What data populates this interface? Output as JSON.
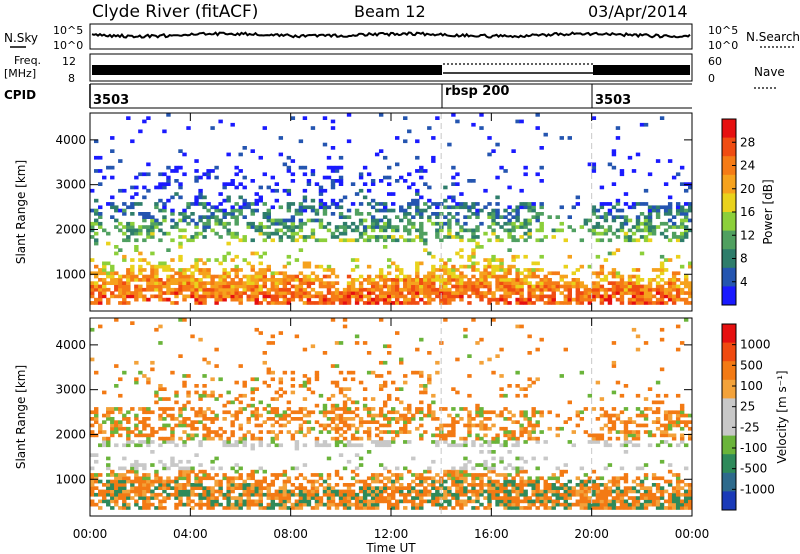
{
  "header": {
    "station": "Clyde River (fitACF)",
    "beam": "Beam 12",
    "date": "03/Apr/2014"
  },
  "status_panels": {
    "noise_label_left": "N.Sky",
    "noise_label_right": "N.Search",
    "noise_ticks": [
      "10^5",
      "10^0"
    ],
    "freq_label": "Freq.",
    "freq_unit": "[MHz]",
    "freq_ticks": [
      "12",
      "8"
    ],
    "nave_label": "Nave",
    "nave_ticks": [
      "60",
      "0"
    ],
    "cpid_label": "CPID",
    "cpid_segments": [
      {
        "label": "3503",
        "start_hour": 0,
        "end_hour": 14
      },
      {
        "label": "rbsp 200",
        "start_hour": 14,
        "end_hour": 20
      },
      {
        "label": "3503",
        "start_hour": 20,
        "end_hour": 24
      }
    ]
  },
  "chart_data": [
    {
      "type": "heatmap",
      "name": "power",
      "ylabel": "Slant Range [km]",
      "xlabel": "Time UT",
      "xlim": [
        0,
        24
      ],
      "ylim": [
        180,
        4600
      ],
      "x_ticks": [
        "00:00",
        "04:00",
        "08:00",
        "12:00",
        "16:00",
        "20:00",
        "00:00"
      ],
      "y_ticks": [
        1000,
        2000,
        3000,
        4000
      ],
      "colorbar": {
        "label": "Power [dB]",
        "ticks": [
          "4",
          "8",
          "12",
          "16",
          "20",
          "24",
          "28"
        ],
        "colors": [
          "#1a1aff",
          "#2455b0",
          "#2e7d6b",
          "#50a060",
          "#8ccf3a",
          "#e9d21c",
          "#f6a21d",
          "#f57b16",
          "#f04c12",
          "#e61010"
        ]
      },
      "boundaries_hours": [
        14,
        20
      ]
    },
    {
      "type": "heatmap",
      "name": "velocity",
      "ylabel": "Slant Range [km]",
      "xlabel": "Time UT",
      "xlim": [
        0,
        24
      ],
      "ylim": [
        180,
        4600
      ],
      "x_ticks": [
        "00:00",
        "04:00",
        "08:00",
        "12:00",
        "16:00",
        "20:00",
        "00:00"
      ],
      "y_ticks": [
        1000,
        2000,
        3000,
        4000
      ],
      "colorbar": {
        "label": "Velocity [m s⁻¹]",
        "ticks": [
          "1000",
          "500",
          "100",
          "25",
          "-25",
          "-100",
          "-500",
          "-1000"
        ],
        "colors": [
          "#1a3ab8",
          "#2e6a8c",
          "#2e8a5a",
          "#6ab43a",
          "#c8c8c8",
          "#c8c8c8",
          "#f3a23a",
          "#f37a14",
          "#f04a10",
          "#e61010"
        ]
      },
      "boundaries_hours": [
        14,
        20
      ]
    }
  ]
}
